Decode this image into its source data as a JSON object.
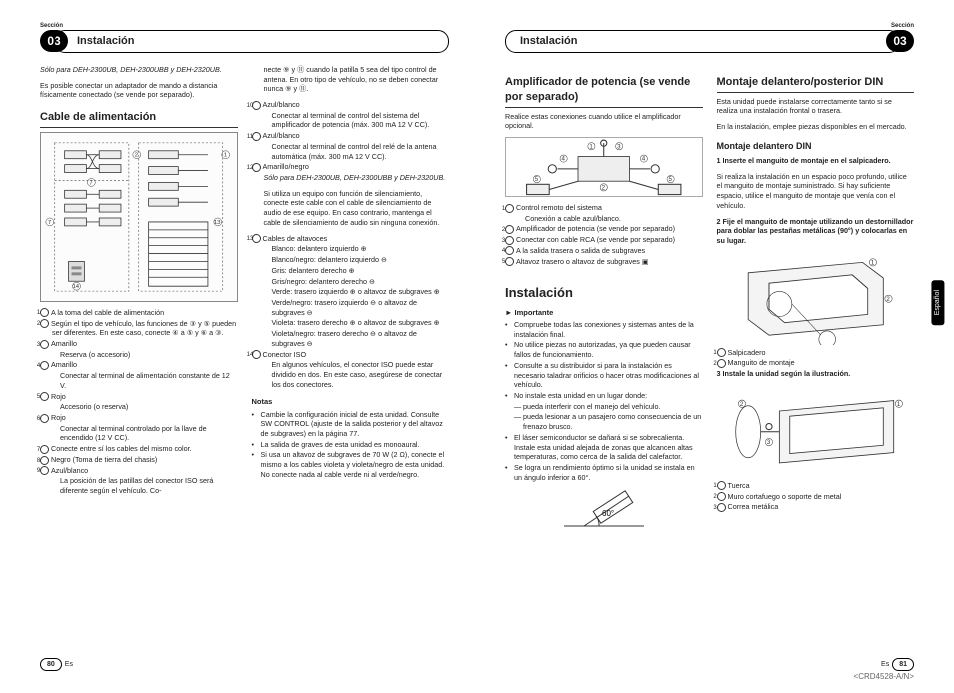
{
  "doc_code": "<CRD4528-A/N>",
  "lang_tab": "Español",
  "left": {
    "section_label": "Sección",
    "badge": "03",
    "header": "Instalación",
    "page_num": "80",
    "page_lang": "Es",
    "intro_italic": "Sólo para DEH-2300UB, DEH-2300UBB y DEH-2320UB.",
    "intro_text": "Es posible conectar un adaptador de mando a distancia físicamente conectado (se vende por separado).",
    "cable_heading": "Cable de alimentación",
    "cable_list": [
      {
        "n": "1",
        "t": "A la toma del cable de alimentación"
      },
      {
        "n": "2",
        "t": "Según el tipo de vehículo, las funciones de ③ y ⑤ pueden ser diferentes. En este caso, conecte ④ a ⑤ y ⑥ a ③."
      },
      {
        "n": "3",
        "t": "Amarillo"
      },
      {
        "n": "",
        "t": "Reserva (o accesorio)",
        "sub": true
      },
      {
        "n": "4",
        "t": "Amarillo"
      },
      {
        "n": "",
        "t": "Conectar al terminal de alimentación constante de 12 V.",
        "sub": true
      },
      {
        "n": "5",
        "t": "Rojo"
      },
      {
        "n": "",
        "t": "Accesorio (o reserva)",
        "sub": true
      },
      {
        "n": "6",
        "t": "Rojo"
      },
      {
        "n": "",
        "t": "Conectar al terminal controlado por la llave de encendido (12 V CC).",
        "sub": true
      },
      {
        "n": "7",
        "t": "Conecte entre sí los cables del mismo color."
      },
      {
        "n": "8",
        "t": "Negro (Toma de tierra del chasis)"
      },
      {
        "n": "9",
        "t": "Azul/blanco"
      },
      {
        "n": "",
        "t": "La posición de las patillas del conector ISO será diferente según el vehículo. Co-",
        "sub": true
      }
    ],
    "col2_top": "necte ⑨ y ⑪ cuando la patilla 5 sea del tipo control de antena. En otro tipo de vehículo, no se deben conectar nunca ⑨ y ⑪.",
    "col2_list": [
      {
        "n": "10",
        "t": "Azul/blanco"
      },
      {
        "n": "",
        "t": "Conectar al terminal de control del sistema del amplificador de potencia (máx. 300 mA 12 V CC).",
        "sub": true
      },
      {
        "n": "11",
        "t": "Azul/blanco"
      },
      {
        "n": "",
        "t": "Conectar al terminal de control del relé de la antena automática (máx. 300 mA 12 V CC).",
        "sub": true
      },
      {
        "n": "12",
        "t": "Amarillo/negro"
      }
    ],
    "col2_italic": "Sólo para DEH-2300UB, DEH-2300UBB y DEH-2320UB.",
    "col2_after_italic": "Si utiliza un equipo con función de silenciamiento, conecte este cable con el cable de silenciamiento de audio de ese equipo. En caso contrario, mantenga el cable de silenciamiento de audio sin ninguna conexión.",
    "col2_list2": [
      {
        "n": "13",
        "t": "Cables de altavoces"
      },
      {
        "n": "",
        "t": "Blanco: delantero izquierdo ⊕",
        "sub": true
      },
      {
        "n": "",
        "t": "Blanco/negro: delantero izquierdo ⊖",
        "sub": true
      },
      {
        "n": "",
        "t": "Gris: delantero derecho ⊕",
        "sub": true
      },
      {
        "n": "",
        "t": "Gris/negro: delantero derecho ⊖",
        "sub": true
      },
      {
        "n": "",
        "t": "Verde: trasero izquierdo ⊕ o altavoz de subgraves ⊕",
        "sub": true
      },
      {
        "n": "",
        "t": "Verde/negro: trasero izquierdo ⊖ o altavoz de subgraves ⊖",
        "sub": true
      },
      {
        "n": "",
        "t": "Violeta: trasero derecho ⊕ o altavoz de subgraves ⊕",
        "sub": true
      },
      {
        "n": "",
        "t": "Violeta/negro: trasero derecho ⊖ o altavoz de subgraves ⊖",
        "sub": true
      },
      {
        "n": "14",
        "t": "Conector ISO"
      },
      {
        "n": "",
        "t": "En algunos vehículos, el conector ISO puede estar dividido en dos. En este caso, asegúrese de conectar los dos conectores.",
        "sub": true
      }
    ],
    "notas_title": "Notas",
    "notas": [
      "Cambie la configuración inicial de esta unidad. Consulte SW CONTROL (ajuste de la salida posterior y del altavoz de subgraves) en la página 77.",
      "La salida de graves de esta unidad es monoaural.",
      "Si usa un altavoz de subgraves de 70 W (2 Ω), conecte el mismo a los cables violeta y violeta/negro de esta unidad. No conecte nada al cable verde ni al verde/negro."
    ]
  },
  "right": {
    "section_label": "Sección",
    "badge": "03",
    "header": "Instalación",
    "page_num": "81",
    "page_lang": "Es",
    "amp_heading": "Amplificador de potencia (se vende por separado)",
    "amp_text": "Realice estas conexiones cuando utilice el amplificador opcional.",
    "amp_list": [
      {
        "n": "1",
        "t": "Control remoto del sistema"
      },
      {
        "n": "",
        "t": "Conexión a cable azul/blanco.",
        "sub": true
      },
      {
        "n": "2",
        "t": "Amplificador de potencia (se vende por separado)"
      },
      {
        "n": "3",
        "t": "Conectar con cable RCA (se vende por separado)"
      },
      {
        "n": "4",
        "t": "A la salida trasera o salida de subgraves"
      },
      {
        "n": "5",
        "t": "Altavoz trasero o altavoz de subgraves ▣"
      }
    ],
    "inst_heading": "Instalación",
    "important": "Importante",
    "inst_bullets": [
      {
        "t": "Compruebe todas las conexiones y sistemas antes de la instalación final."
      },
      {
        "t": "No utilice piezas no autorizadas, ya que pueden causar fallos de funcionamiento."
      },
      {
        "t": "Consulte a su distribuidor si para la instalación es necesario taladrar orificios o hacer otras modificaciones al vehículo."
      },
      {
        "t": "No instale esta unidad en un lugar donde:"
      },
      {
        "t": "pueda interferir con el manejo del vehículo.",
        "dash": true
      },
      {
        "t": "pueda lesionar a un pasajero como consecuencia de un frenazo brusco.",
        "dash": true
      },
      {
        "t": "El láser semiconductor se dañará si se sobrecalienta. Instale esta unidad alejada de zonas que alcancen altas temperaturas, como cerca de la salida del calefactor."
      },
      {
        "t": "Se logra un rendimiento óptimo si la unidad se instala en un ángulo inferior a 60°."
      }
    ],
    "angle_label": "60°",
    "din_heading": "Montaje delantero/posterior DIN",
    "din_text": "Esta unidad puede instalarse correctamente tanto si se realiza una instalación frontal o trasera.",
    "din_text2": "En la instalación, emplee piezas disponibles en el mercado.",
    "din_front_heading": "Montaje delantero DIN",
    "step1": "1   Inserte el manguito de montaje en el salpicadero.",
    "step1_text": "Si realiza la instalación en un espacio poco profundo, utilice el manguito de montaje suministrado. Si hay suficiente espacio, utilice el manguito de montaje que venía con el vehículo.",
    "step2": "2   Fije el manguito de montaje utilizando un destornillador para doblar las pestañas metálicas (90°) y colocarlas en su lugar.",
    "mount_list": [
      {
        "n": "1",
        "t": "Salpicadero"
      },
      {
        "n": "2",
        "t": "Manguito de montaje"
      }
    ],
    "step3": "3   Instale la unidad según la ilustración.",
    "install_list": [
      {
        "n": "1",
        "t": "Tuerca"
      },
      {
        "n": "2",
        "t": "Muro cortafuego o soporte de metal"
      },
      {
        "n": "3",
        "t": "Correa metálica"
      }
    ]
  }
}
